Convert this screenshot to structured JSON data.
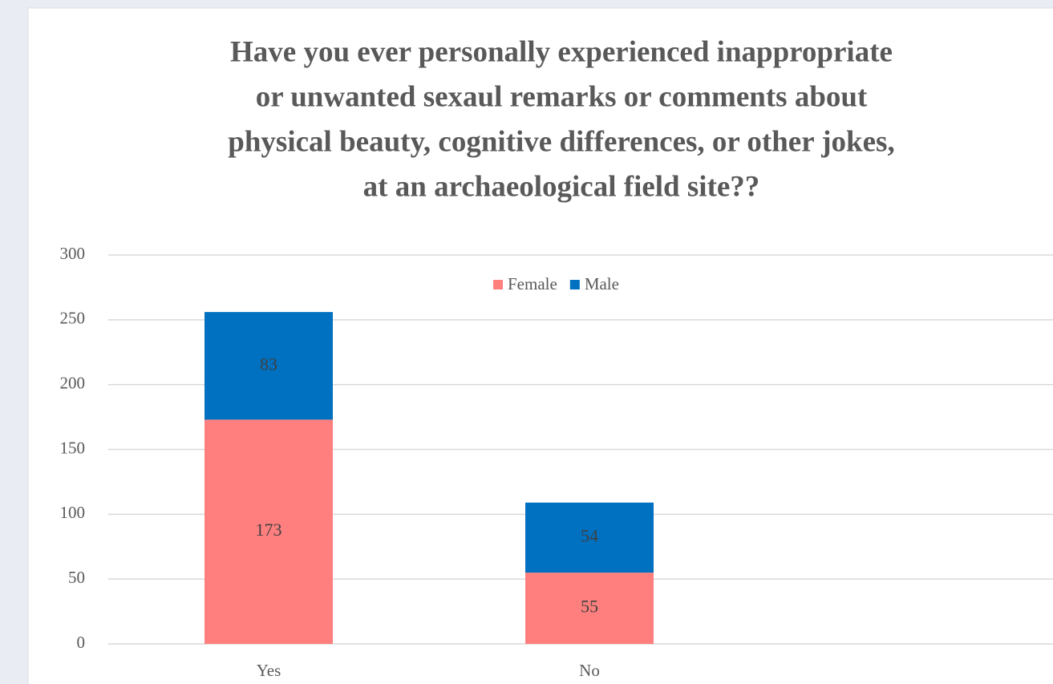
{
  "chart_data": {
    "type": "stacked_bar",
    "title": [
      "Have you ever personally  experienced  inappropriate",
      "or unwanted  sexaul remarks  or comments about",
      "physical  beauty, cognitive differences, or other jokes,",
      "at an archaeological field  site??"
    ],
    "categories": [
      "Yes",
      "No"
    ],
    "series": [
      {
        "name": "Female",
        "color": "#ff7f7f",
        "values": [
          173,
          55
        ]
      },
      {
        "name": "Male",
        "color": "#0070c0",
        "values": [
          83,
          54
        ]
      }
    ],
    "ylim": [
      0,
      300
    ],
    "yticks": [
      0,
      50,
      100,
      150,
      200,
      250,
      300
    ],
    "grid": true,
    "legend": "top"
  }
}
